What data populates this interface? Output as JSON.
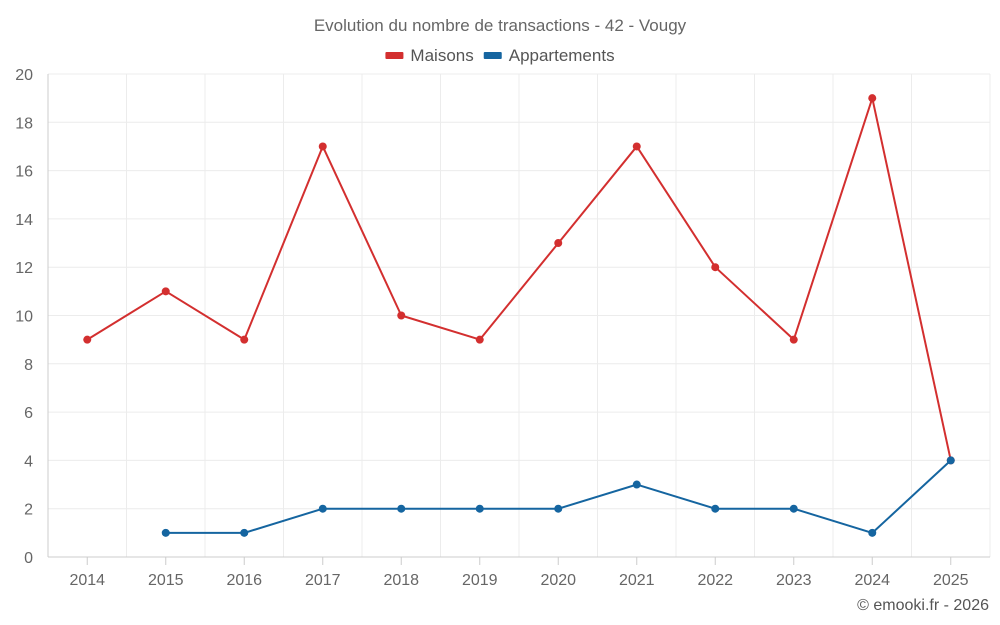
{
  "chart_data": {
    "type": "line",
    "title": "Evolution du nombre de transactions - 42 - Vougy",
    "categories": [
      "2014",
      "2015",
      "2016",
      "2017",
      "2018",
      "2019",
      "2020",
      "2021",
      "2022",
      "2023",
      "2024",
      "2025"
    ],
    "series": [
      {
        "name": "Maisons",
        "color": "#d32f2f",
        "values": [
          9,
          11,
          9,
          17,
          10,
          9,
          13,
          17,
          12,
          9,
          19,
          4
        ]
      },
      {
        "name": "Appartements",
        "color": "#1565a0",
        "values": [
          null,
          1,
          1,
          2,
          2,
          2,
          2,
          3,
          2,
          2,
          1,
          4
        ]
      }
    ],
    "ylim": [
      0,
      20
    ],
    "yticks": [
      "0",
      "2",
      "4",
      "6",
      "8",
      "10",
      "12",
      "14",
      "16",
      "18",
      "20"
    ],
    "grid": true,
    "legend_position": "top-center"
  },
  "credit": "© emooki.fr - 2026"
}
